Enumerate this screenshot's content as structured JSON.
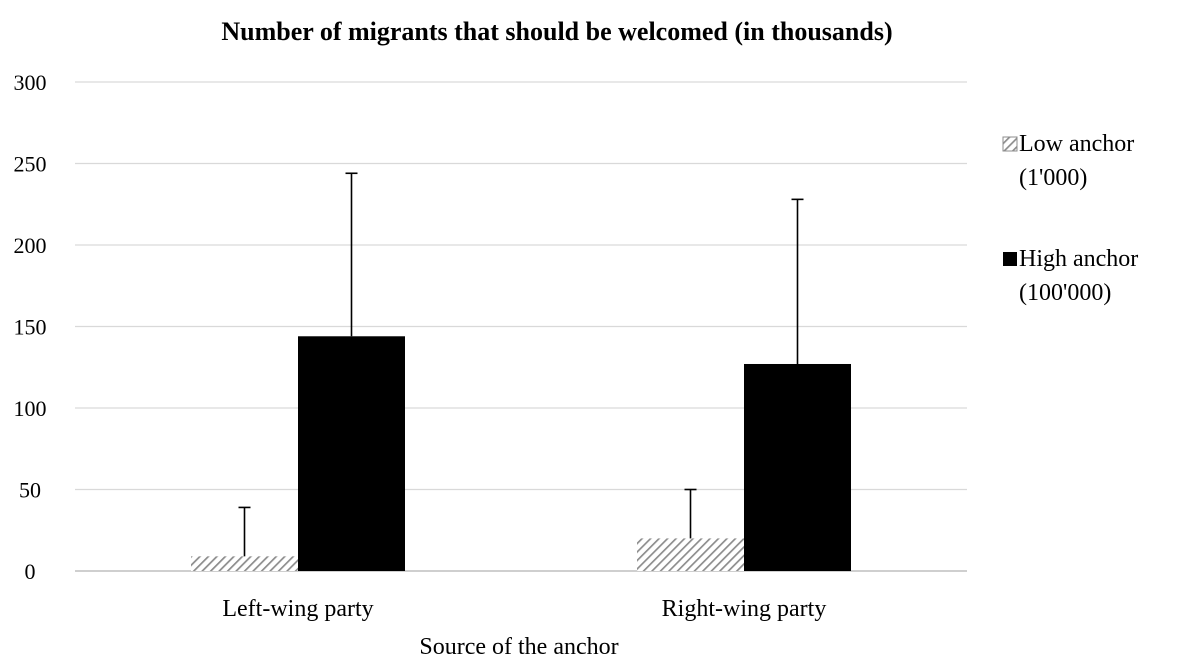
{
  "chart_data": {
    "type": "bar",
    "title": "Number of migrants that should be welcomed (in thousands)",
    "xlabel": "Source of the anchor",
    "ylabel": "",
    "categories": [
      "Left-wing party",
      "Right-wing party"
    ],
    "ylim": [
      0,
      300
    ],
    "yticks": [
      0,
      50,
      100,
      150,
      200,
      250,
      300
    ],
    "grid": true,
    "legend_position": "right",
    "series": [
      {
        "name": "Low anchor (1'000)",
        "legend_lines": [
          "Low anchor",
          "(1'000)"
        ],
        "pattern": "diagonal-hatch",
        "color": "#8c8c8c",
        "values": [
          9,
          20
        ],
        "error_upper": [
          30,
          30
        ]
      },
      {
        "name": "High anchor (100'000)",
        "legend_lines": [
          "High anchor",
          "(100'000)"
        ],
        "pattern": "solid",
        "color": "#000000",
        "values": [
          144,
          127
        ],
        "error_upper": [
          100,
          101
        ]
      }
    ]
  },
  "colors": {
    "grid": "#d9d9d9",
    "axis": "#bfbfbf",
    "text": "#000000"
  }
}
